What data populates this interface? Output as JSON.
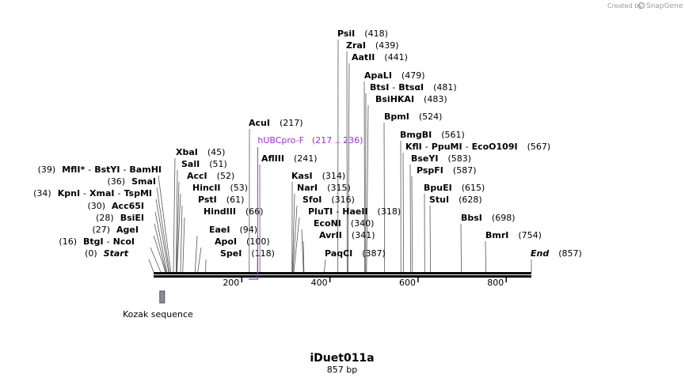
{
  "header": {
    "credit": "Created by",
    "brand": "SnapGene"
  },
  "sequence": {
    "name": "iDuet011a",
    "length_label": "857 bp",
    "length_bp": 857,
    "ticks": [
      {
        "bp": 200,
        "label": "200"
      },
      {
        "bp": 400,
        "label": "400"
      },
      {
        "bp": 600,
        "label": "600"
      },
      {
        "bp": 800,
        "label": "800"
      }
    ]
  },
  "colors": {
    "feature": "#9b30c8",
    "backbone": "#000000",
    "line": "#555555",
    "box": "#8a8f96"
  },
  "enzymes": [
    {
      "names": [
        "PsiI"
      ],
      "pos": "(418)",
      "bp": 418
    },
    {
      "names": [
        "ZraI"
      ],
      "pos": "(439)",
      "bp": 439
    },
    {
      "names": [
        "AatII"
      ],
      "pos": "(441)",
      "bp": 441
    },
    {
      "names": [
        "ApaLI"
      ],
      "pos": "(479)",
      "bp": 479
    },
    {
      "names": [
        "BtsI",
        "BtsαI"
      ],
      "pos": "(481)",
      "bp": 481
    },
    {
      "names": [
        "BsiHKAI"
      ],
      "pos": "(483)",
      "bp": 483
    },
    {
      "names": [
        "BpmI"
      ],
      "pos": "(524)",
      "bp": 524
    },
    {
      "names": [
        "BmgBI"
      ],
      "pos": "(561)",
      "bp": 561
    },
    {
      "names": [
        "KflI",
        "PpuMI",
        "EcoO109I"
      ],
      "pos": "(567)",
      "bp": 567
    },
    {
      "names": [
        "BseYI"
      ],
      "pos": "(583)",
      "bp": 583
    },
    {
      "names": [
        "PspFI"
      ],
      "pos": "(587)",
      "bp": 587
    },
    {
      "names": [
        "BpuEI"
      ],
      "pos": "(615)",
      "bp": 615
    },
    {
      "names": [
        "StuI"
      ],
      "pos": "(628)",
      "bp": 628
    },
    {
      "names": [
        "BbsI"
      ],
      "pos": "(698)",
      "bp": 698
    },
    {
      "names": [
        "BmrI"
      ],
      "pos": "(754)",
      "bp": 754
    },
    {
      "names": [
        "End"
      ],
      "pos": "(857)",
      "bp": 857,
      "italic": true
    },
    {
      "names": [
        "AcuI"
      ],
      "pos": "(217)",
      "bp": 217
    },
    {
      "names": [
        "AflIII"
      ],
      "pos": "(241)",
      "bp": 241
    },
    {
      "names": [
        "KasI"
      ],
      "pos": "(314)",
      "bp": 314
    },
    {
      "names": [
        "NarI"
      ],
      "pos": "(315)",
      "bp": 315
    },
    {
      "names": [
        "SfoI"
      ],
      "pos": "(316)",
      "bp": 316
    },
    {
      "names": [
        "PluTI",
        "HaeII"
      ],
      "pos": "(318)",
      "bp": 318
    },
    {
      "names": [
        "EcoNI"
      ],
      "pos": "(340)",
      "bp": 340
    },
    {
      "names": [
        "AvrII"
      ],
      "pos": "(341)",
      "bp": 341
    },
    {
      "names": [
        "PaqCI"
      ],
      "pos": "(387)",
      "bp": 387
    },
    {
      "names": [
        "XbaI"
      ],
      "pos": "(45)",
      "bp": 45
    },
    {
      "names": [
        "SalI"
      ],
      "pos": "(51)",
      "bp": 51
    },
    {
      "names": [
        "AccI"
      ],
      "pos": "(52)",
      "bp": 52
    },
    {
      "names": [
        "HincII"
      ],
      "pos": "(53)",
      "bp": 53
    },
    {
      "names": [
        "PstI"
      ],
      "pos": "(61)",
      "bp": 61
    },
    {
      "names": [
        "HindIII"
      ],
      "pos": "(66)",
      "bp": 66
    },
    {
      "names": [
        "EaeI"
      ],
      "pos": "(94)",
      "bp": 94
    },
    {
      "names": [
        "ApoI"
      ],
      "pos": "(100)",
      "bp": 100
    },
    {
      "names": [
        "SpeI"
      ],
      "pos": "(118)",
      "bp": 118
    },
    {
      "names": [
        "MflI",
        "BstYI",
        "BamHI"
      ],
      "pos": "(39)",
      "bp": 39,
      "star": true
    },
    {
      "names": [
        "SmaI"
      ],
      "pos": "(36)",
      "bp": 36
    },
    {
      "names": [
        "KpnI",
        "XmaI",
        "TspMI"
      ],
      "pos": "(34)",
      "bp": 34
    },
    {
      "names": [
        "Acc65I"
      ],
      "pos": "(30)",
      "bp": 30
    },
    {
      "names": [
        "BsiEI"
      ],
      "pos": "(28)",
      "bp": 28
    },
    {
      "names": [
        "AgeI"
      ],
      "pos": "(27)",
      "bp": 27
    },
    {
      "names": [
        "BtgI",
        "NcoI"
      ],
      "pos": "(16)",
      "bp": 16
    },
    {
      "names": [
        "Start"
      ],
      "pos": "(0)",
      "bp": 0,
      "italic": true
    }
  ],
  "primer": {
    "name": "hUBCpro-F",
    "range": "(217 .. 236)",
    "start": 217,
    "end": 236
  },
  "feature": {
    "name": "Kozak sequence",
    "start": 14,
    "end": 23
  }
}
